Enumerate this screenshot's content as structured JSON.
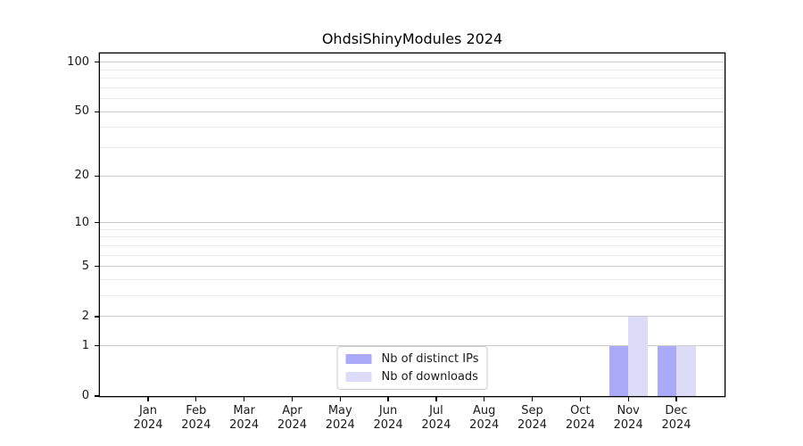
{
  "chart_data": {
    "type": "bar",
    "title": "OhdsiShinyModules 2024",
    "xlabel": "",
    "ylabel": "",
    "categories": [
      "Jan",
      "Feb",
      "Mar",
      "Apr",
      "May",
      "Jun",
      "Jul",
      "Aug",
      "Sep",
      "Oct",
      "Nov",
      "Dec"
    ],
    "xtick_year": "2024",
    "series": [
      {
        "name": "Nb of distinct IPs",
        "color": "#aaaaf8",
        "values": [
          0,
          0,
          0,
          0,
          0,
          0,
          0,
          0,
          0,
          0,
          1,
          1
        ]
      },
      {
        "name": "Nb of downloads",
        "color": "#dcdcf8",
        "values": [
          0,
          0,
          0,
          0,
          0,
          0,
          0,
          0,
          0,
          0,
          2,
          1
        ]
      }
    ],
    "yscale": "log1p",
    "ylim": [
      0,
      113
    ],
    "yticks": [
      0,
      1,
      2,
      5,
      10,
      20,
      50,
      100
    ],
    "yticks_minor": [
      3,
      4,
      6,
      7,
      8,
      9,
      30,
      40,
      60,
      70,
      80,
      90
    ],
    "grid": "horizontal",
    "legend_position": "lower center inside",
    "colors": {
      "grid_major": "#cccccc",
      "grid_minor": "#ebebeb",
      "spine": "#000000",
      "text": "#1a1a1a",
      "background": "#ffffff"
    }
  }
}
